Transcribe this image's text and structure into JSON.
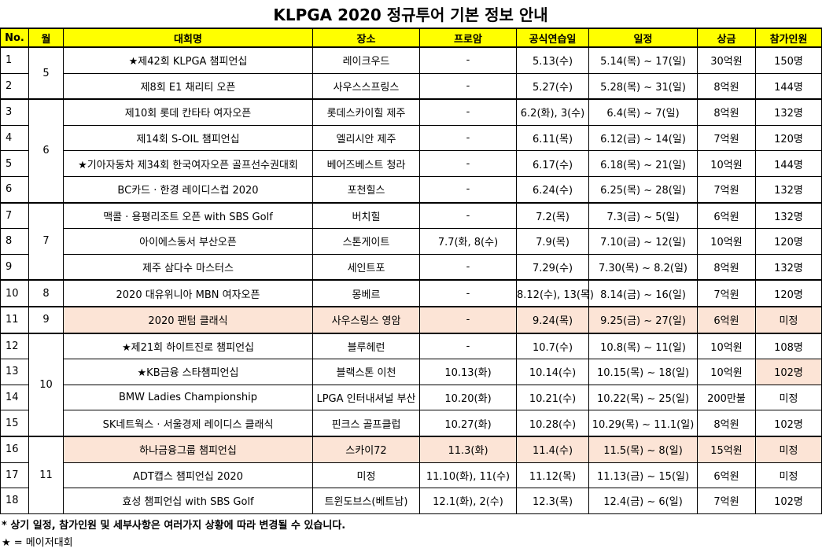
{
  "title": "KLPGA 2020 정규투어 기본 정보 안내",
  "header": [
    "No.",
    "월",
    "대회명",
    "장소",
    "프로암",
    "공식연습일",
    "일정",
    "상금",
    "참가인원"
  ],
  "groups": [
    {
      "month": "5",
      "rows": [
        [
          "1",
          "★제42회 KLPGA 챔피언십",
          "레이크우드",
          "-",
          "5.13(수)",
          "5.14(목) ~ 17(일)",
          "30억원",
          "150명"
        ],
        [
          "2",
          "제8회 E1 채리티 오픈",
          "사우스스프링스",
          "-",
          "5.27(수)",
          "5.28(목) ~ 31(일)",
          "8억원",
          "144명"
        ]
      ]
    },
    {
      "month": "6",
      "rows": [
        [
          "3",
          "제10회 롯데 칸타타 여자오픈",
          "롯데스카이힐 제주",
          "-",
          "6.2(화), 3(수)",
          "6.4(목) ~ 7(일)",
          "8억원",
          "132명"
        ],
        [
          "4",
          "제14회 S-OIL 챔피언십",
          "엘리시안 제주",
          "-",
          "6.11(목)",
          "6.12(금) ~ 14(일)",
          "7억원",
          "120명"
        ],
        [
          "5",
          "★기아자동차 제34회 한국여자오픈 골프선수권대회",
          "베어즈베스트 청라",
          "-",
          "6.17(수)",
          "6.18(목) ~ 21(일)",
          "10억원",
          "144명"
        ],
        [
          "6",
          "BC카드 · 한경 레이디스컵 2020",
          "포천힐스",
          "-",
          "6.24(수)",
          "6.25(목) ~ 28(일)",
          "7억원",
          "132명"
        ]
      ]
    },
    {
      "month": "7",
      "rows": [
        [
          "7",
          "맥콜 · 용평리조트 오픈 with SBS Golf",
          "버치힐",
          "-",
          "7.2(목)",
          "7.3(금) ~ 5(일)",
          "6억원",
          "132명"
        ],
        [
          "8",
          "아이에스동서 부산오픈",
          "스톤게이트",
          "7.7(화, 8(수)",
          "7.9(목)",
          "7.10(금) ~ 12(일)",
          "10억원",
          "120명"
        ],
        [
          "9",
          "제주 삼다수 마스터스",
          "세인트포",
          "-",
          "7.29(수)",
          "7.30(목) ~ 8.2(일)",
          "8억원",
          "132명"
        ]
      ]
    },
    {
      "month": "8",
      "rows": [
        [
          "10",
          "2020 대유위니아 MBN 여자오픈",
          "몽베르",
          "-",
          "8.12(수), 13(목)",
          "8.14(금) ~ 16(일)",
          "7억원",
          "120명"
        ]
      ]
    },
    {
      "month": "9",
      "rows": [
        [
          "11",
          "2020 팬텀 클래식",
          "사우스링스 영암",
          "-",
          "9.24(목)",
          "9.25(금) ~ 27(일)",
          "6억원",
          "미정"
        ]
      ]
    },
    {
      "month": "10",
      "rows": [
        [
          "12",
          "★제21회 하이트진로 챔피언십",
          "블루헤런",
          "-",
          "10.7(수)",
          "10.8(목) ~ 11(일)",
          "10억원",
          "108명"
        ],
        [
          "13",
          "★KB금융 스타챔피언십",
          "블랙스톤 이천",
          "10.13(화)",
          "10.14(수)",
          "10.15(목) ~ 18(일)",
          "10억원",
          "102명"
        ],
        [
          "14",
          "BMW Ladies Championship",
          "LPGA 인터내셔널 부산",
          "10.20(화)",
          "10.21(수)",
          "10.22(목) ~ 25(일)",
          "200만불",
          "미정"
        ],
        [
          "15",
          "SK네트웍스 · 서울경제 레이디스 클래식",
          "핀크스 골프클럽",
          "10.27(화)",
          "10.28(수)",
          "10.29(목) ~ 11.1(일)",
          "8억원",
          "102명"
        ]
      ]
    },
    {
      "month": "11",
      "rows": [
        [
          "16",
          "하나금융그룹 챔피언십",
          "스카이72",
          "11.3(화)",
          "11.4(수)",
          "11.5(목) ~ 8(일)",
          "15억원",
          "미정"
        ],
        [
          "17",
          "ADT캡스 챔피언십 2020",
          "미정",
          "11.10(화), 11(수)",
          "11.12(목)",
          "11.13(금) ~ 15(일)",
          "6억원",
          "미정"
        ],
        [
          "18",
          "효성 챔피언십 with SBS Golf",
          "트윈도브스(베트남)",
          "12.1(화), 2(수)",
          "12.3(목)",
          "12.4(금) ~ 6(일)",
          "7억원",
          "102명"
        ]
      ]
    }
  ],
  "notes": [
    "* 상기 일정, 참가인원 및 세부사항은 여러가지 상황에 따라 변경될 수 있습니다.",
    "★ = 메이저대회"
  ]
}
